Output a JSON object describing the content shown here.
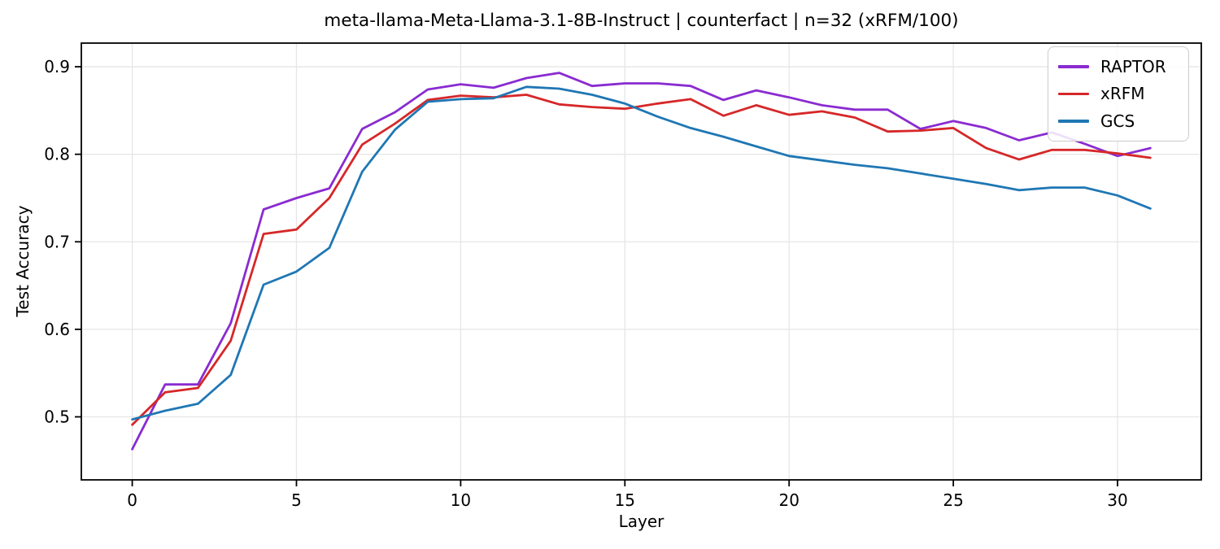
{
  "chart_data": {
    "type": "line",
    "title": "meta-llama-Meta-Llama-3.1-8B-Instruct | counterfact | n=32 (xRFM/100)",
    "xlabel": "Layer",
    "ylabel": "Test Accuracy",
    "x": [
      0,
      1,
      2,
      3,
      4,
      5,
      6,
      7,
      8,
      9,
      10,
      11,
      12,
      13,
      14,
      15,
      16,
      17,
      18,
      19,
      20,
      21,
      22,
      23,
      24,
      25,
      26,
      27,
      28,
      29,
      30,
      31
    ],
    "x_ticks": [
      0,
      5,
      10,
      15,
      20,
      25,
      30
    ],
    "x_tick_labels": [
      "0",
      "5",
      "10",
      "15",
      "20",
      "25",
      "30"
    ],
    "y_ticks": [
      0.5,
      0.6,
      0.7,
      0.8,
      0.9
    ],
    "y_tick_labels": [
      "0.5",
      "0.6",
      "0.7",
      "0.8",
      "0.9"
    ],
    "xlim": [
      -1.55,
      32.55
    ],
    "ylim": [
      0.428,
      0.927
    ],
    "grid": true,
    "legend_position": "upper right",
    "colors": {
      "grid": "#e6e6e6",
      "spine": "#000000",
      "text": "#000000"
    },
    "series": [
      {
        "name": "RAPTOR",
        "color": "#8a2bd1",
        "values": [
          0.463,
          0.537,
          0.537,
          0.607,
          0.737,
          0.75,
          0.761,
          0.829,
          0.848,
          0.874,
          0.88,
          0.876,
          0.887,
          0.893,
          0.878,
          0.881,
          0.881,
          0.878,
          0.862,
          0.873,
          0.865,
          0.856,
          0.851,
          0.851,
          0.829,
          0.838,
          0.83,
          0.816,
          0.825,
          0.812,
          0.798,
          0.807
        ]
      },
      {
        "name": "xRFM",
        "color": "#d62728",
        "values": [
          0.491,
          0.528,
          0.533,
          0.587,
          0.709,
          0.714,
          0.75,
          0.811,
          0.835,
          0.862,
          0.867,
          0.865,
          0.868,
          0.857,
          0.854,
          0.852,
          0.858,
          0.863,
          0.844,
          0.856,
          0.845,
          0.849,
          0.842,
          0.826,
          0.827,
          0.83,
          0.807,
          0.794,
          0.805,
          0.805,
          0.801,
          0.796
        ]
      },
      {
        "name": "GCS",
        "color": "#1f77b4",
        "values": [
          0.497,
          0.507,
          0.515,
          0.548,
          0.651,
          0.666,
          0.693,
          0.78,
          0.828,
          0.86,
          0.863,
          0.864,
          0.877,
          0.875,
          0.868,
          0.858,
          0.843,
          0.83,
          0.82,
          0.809,
          0.798,
          0.793,
          0.788,
          0.784,
          0.778,
          0.772,
          0.766,
          0.759,
          0.762,
          0.762,
          0.753,
          0.738
        ]
      }
    ]
  }
}
